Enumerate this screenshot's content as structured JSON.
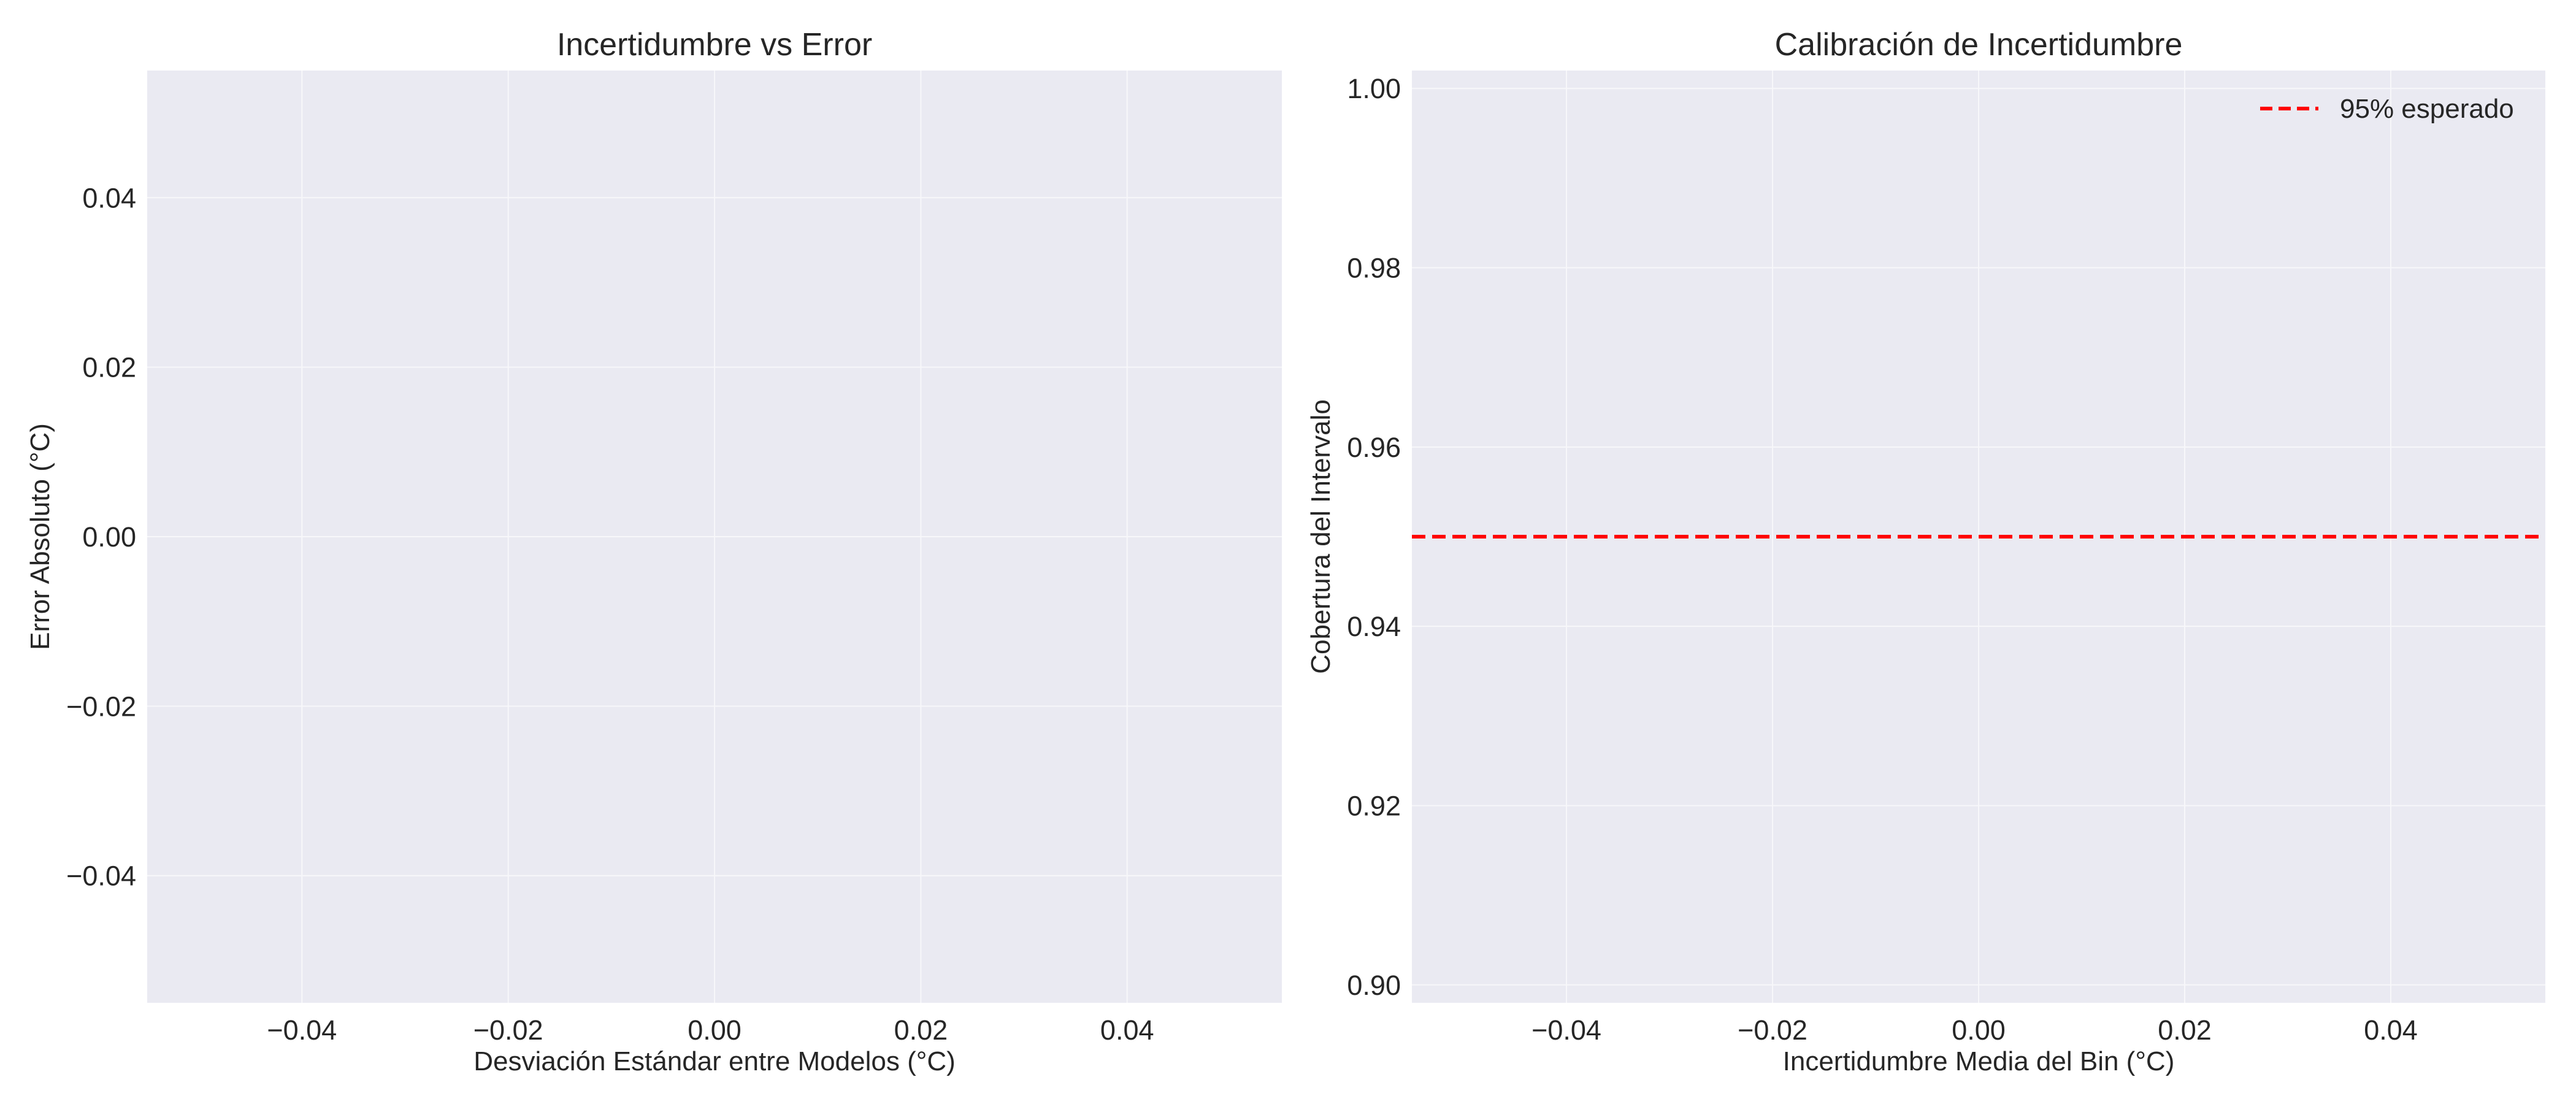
{
  "colors": {
    "plot_background": "#eaeaf2",
    "grid": "#f7f7fa",
    "reference_line": "#ff0000",
    "text": "#262626"
  },
  "chart_data": [
    {
      "type": "scatter",
      "title": "Incertidumbre vs Error",
      "xlabel": "Desviación Estándar entre Modelos (°C)",
      "ylabel": "Error Absoluto (°C)",
      "xlim": [
        -0.055,
        0.055
      ],
      "ylim": [
        -0.055,
        0.055
      ],
      "xticks": [
        -0.04,
        -0.02,
        0.0,
        0.02,
        0.04
      ],
      "yticks": [
        -0.04,
        -0.02,
        0.0,
        0.02,
        0.04
      ],
      "xtick_labels": [
        "−0.04",
        "−0.02",
        "0.00",
        "0.02",
        "0.04"
      ],
      "ytick_labels": [
        "−0.04",
        "−0.02",
        "0.00",
        "0.02",
        "0.04"
      ],
      "grid": true,
      "series": []
    },
    {
      "type": "line",
      "title": "Calibración de Incertidumbre",
      "xlabel": "Incertidumbre Media del Bin (°C)",
      "ylabel": "Cobertura del Intervalo",
      "xlim": [
        -0.055,
        0.055
      ],
      "ylim": [
        0.898,
        1.002
      ],
      "xticks": [
        -0.04,
        -0.02,
        0.0,
        0.02,
        0.04
      ],
      "yticks": [
        0.9,
        0.92,
        0.94,
        0.96,
        0.98,
        1.0
      ],
      "xtick_labels": [
        "−0.04",
        "−0.02",
        "0.00",
        "0.02",
        "0.04"
      ],
      "ytick_labels": [
        "0.90",
        "0.92",
        "0.94",
        "0.96",
        "0.98",
        "1.00"
      ],
      "grid": true,
      "legend_position": "top-right",
      "series": [],
      "reference_lines": [
        {
          "name": "95% esperado",
          "orientation": "horizontal",
          "value": 0.95,
          "style": "dashed",
          "color": "#ff0000"
        }
      ]
    }
  ]
}
